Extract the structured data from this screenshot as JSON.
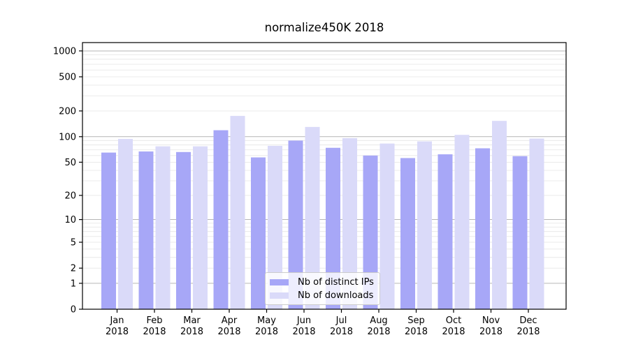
{
  "chart_data": {
    "type": "bar",
    "title": "normalize450K 2018",
    "categories": [
      "Jan 2018",
      "Feb 2018",
      "Mar 2018",
      "Apr 2018",
      "May 2018",
      "Jun 2018",
      "Jul 2018",
      "Aug 2018",
      "Sep 2018",
      "Oct 2018",
      "Nov 2018",
      "Dec 2018"
    ],
    "series": [
      {
        "name": "Nb of distinct IPs",
        "color": "#a7a7f7",
        "values": [
          65,
          67,
          66,
          119,
          57,
          90,
          74,
          60,
          56,
          62,
          73,
          59
        ]
      },
      {
        "name": "Nb of downloads",
        "color": "#dadaf9",
        "values": [
          94,
          77,
          77,
          175,
          78,
          130,
          96,
          83,
          88,
          105,
          153,
          95
        ]
      }
    ],
    "y_ticks": [
      0,
      1,
      2,
      5,
      10,
      20,
      50,
      100,
      200,
      500,
      1000
    ],
    "y_scale": "log1p",
    "ylim": [
      0,
      1250
    ],
    "xlabel": "",
    "ylabel": "",
    "grid": {
      "major_color": "#b6b6b6",
      "minor_color": "#e8e8e8"
    },
    "legend_position": "lower center",
    "axis_color": "#000000"
  }
}
